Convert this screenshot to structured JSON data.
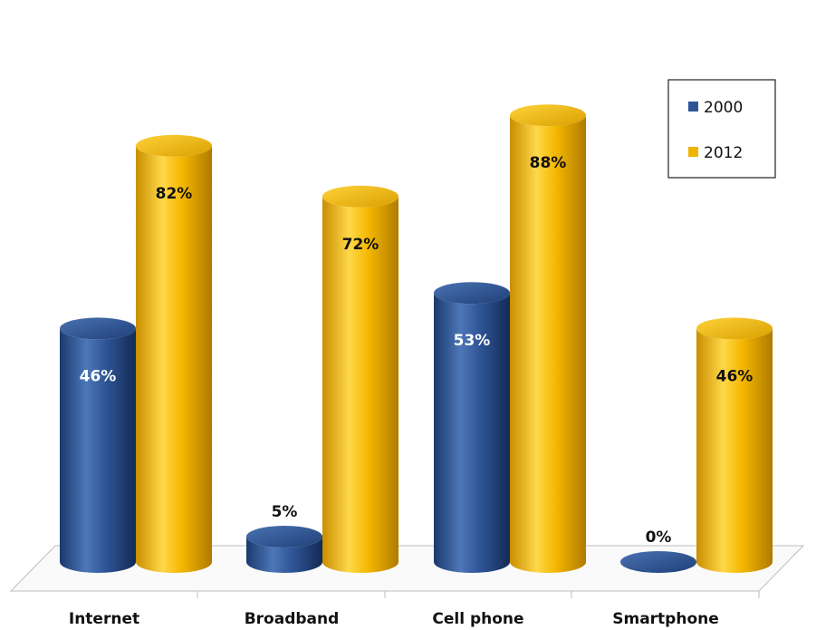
{
  "chart_data": {
    "type": "bar",
    "style": "3d-cylinder",
    "categories": [
      "Internet",
      "Broadband",
      "Cell phone",
      "Smartphone"
    ],
    "series": [
      {
        "name": "2000",
        "values": [
          46,
          5,
          53,
          0
        ],
        "labels": [
          "46%",
          "5%",
          "53%",
          "0%"
        ],
        "color": "#2f5597"
      },
      {
        "name": "2012",
        "values": [
          82,
          72,
          88,
          46
        ],
        "labels": [
          "82%",
          "72%",
          "88%",
          "46%"
        ],
        "color": "#f0b400"
      }
    ],
    "title": "",
    "xlabel": "",
    "ylabel": "",
    "ylim": [
      0,
      100
    ],
    "unit": "%",
    "grid": false,
    "legend_position": "top-right"
  }
}
